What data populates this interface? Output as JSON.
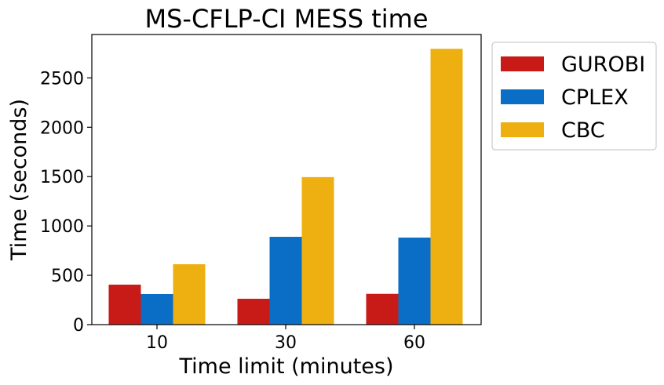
{
  "chart_data": {
    "type": "bar",
    "title": "MS-CFLP-CI MESS time",
    "xlabel": "Time limit (minutes)",
    "ylabel": "Time (seconds)",
    "categories": [
      "10",
      "30",
      "60"
    ],
    "series": [
      {
        "name": "GUROBI",
        "color": "#c81a16",
        "values": [
          405,
          262,
          312
        ]
      },
      {
        "name": "CPLEX",
        "color": "#0b6ec6",
        "values": [
          310,
          890,
          882
        ]
      },
      {
        "name": "CBC",
        "color": "#eeb011",
        "values": [
          612,
          1495,
          2795
        ]
      }
    ],
    "yticks": [
      0,
      500,
      1000,
      1500,
      2000,
      2500
    ],
    "ylim": [
      0,
      2940
    ],
    "grid": false,
    "legend_position": "outside-top-right"
  }
}
